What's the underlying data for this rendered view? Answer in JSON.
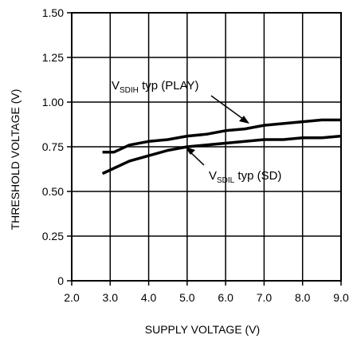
{
  "chart_data": {
    "type": "line",
    "xlabel": "SUPPLY VOLTAGE (V)",
    "ylabel": "THRESHOLD VOLTAGE (V)",
    "xlim": [
      2.0,
      9.0
    ],
    "ylim": [
      0,
      1.5
    ],
    "x_ticks": [
      2.0,
      3.0,
      4.0,
      5.0,
      6.0,
      7.0,
      8.0,
      9.0
    ],
    "x_tick_labels": [
      "2.0",
      "3.0",
      "4.0",
      "5.0",
      "6.0",
      "7.0",
      "8.0",
      "9.0"
    ],
    "y_ticks": [
      0,
      0.25,
      0.5,
      0.75,
      1.0,
      1.25,
      1.5
    ],
    "y_tick_labels": [
      "0",
      "0.25",
      "0.50",
      "0.75",
      "1.00",
      "1.25",
      "1.50"
    ],
    "grid": true,
    "series": [
      {
        "x": [
          2.8,
          3.1,
          3.5,
          4.0,
          4.5,
          5.0,
          5.5,
          6.0,
          6.5,
          7.0,
          7.5,
          8.0,
          8.5,
          9.0
        ],
        "values": [
          0.72,
          0.72,
          0.76,
          0.78,
          0.79,
          0.81,
          0.82,
          0.84,
          0.85,
          0.87,
          0.88,
          0.89,
          0.9,
          0.9
        ]
      },
      {
        "x": [
          2.8,
          3.1,
          3.5,
          4.0,
          4.5,
          5.0,
          5.5,
          6.0,
          6.5,
          7.0,
          7.5,
          8.0,
          8.5,
          9.0
        ],
        "values": [
          0.6,
          0.63,
          0.67,
          0.7,
          0.73,
          0.75,
          0.76,
          0.77,
          0.78,
          0.79,
          0.79,
          0.8,
          0.8,
          0.81
        ]
      }
    ],
    "annotations": [
      {
        "main": "V",
        "sub": "SDIH",
        "rest": " typ (PLAY)"
      },
      {
        "main": "V",
        "sub": "SDIL",
        "rest": " typ (SD)"
      }
    ]
  }
}
